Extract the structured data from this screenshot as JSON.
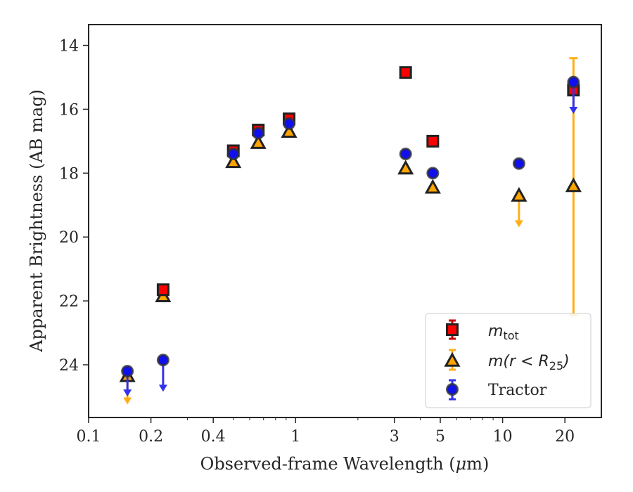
{
  "chart_data": {
    "type": "scatter",
    "xlabel_text": "Observed-frame Wavelength (",
    "xlabel_mu": "μ",
    "xlabel_unit": "m)",
    "ylabel": "Apparent Brightness (AB mag)",
    "xscale": "log",
    "xlim": [
      0.1,
      30
    ],
    "ylim": [
      25.65,
      13.35
    ],
    "y_inverted": true,
    "grid": false,
    "legend_position": "bottom-right",
    "x_tick_labels": [
      "0.1",
      "0.2",
      "0.4",
      "1",
      "3",
      "5",
      "10",
      "20"
    ],
    "x_tick_values": [
      0.1,
      0.2,
      0.4,
      1,
      3,
      5,
      10,
      20
    ],
    "y_tick_labels": [
      "14",
      "16",
      "18",
      "20",
      "22",
      "24"
    ],
    "y_tick_values": [
      14,
      16,
      18,
      20,
      22,
      24
    ],
    "colors": {
      "mtot": "#ff0000",
      "mr25": "#ffa500",
      "tractor": "#1010ee",
      "mr25_err": "#ffae1a",
      "tractor_err": "#3333ee",
      "edge": "#222222"
    },
    "series": [
      {
        "key": "mtot",
        "name_main": "m",
        "name_sub": "tot",
        "marker": "square",
        "points": [
          {
            "x": 0.229,
            "y": 21.65
          },
          {
            "x": 0.5,
            "y": 17.3
          },
          {
            "x": 0.66,
            "y": 16.65
          },
          {
            "x": 0.93,
            "y": 16.3
          },
          {
            "x": 3.4,
            "y": 14.85
          },
          {
            "x": 4.6,
            "y": 17.0
          },
          {
            "x": 22.0,
            "y": 15.4
          }
        ]
      },
      {
        "key": "mr25",
        "name_full": "m(r < R25)",
        "name_main": "m(r < R",
        "name_sub": "25",
        "name_close": ")",
        "marker": "triangle",
        "points": [
          {
            "x": 0.154,
            "y": 24.35,
            "upper_limit": true,
            "arrow_to": 25.2
          },
          {
            "x": 0.229,
            "y": 21.85
          },
          {
            "x": 0.5,
            "y": 17.65
          },
          {
            "x": 0.66,
            "y": 17.05
          },
          {
            "x": 0.93,
            "y": 16.7
          },
          {
            "x": 3.4,
            "y": 17.85
          },
          {
            "x": 4.6,
            "y": 18.45
          },
          {
            "x": 12.0,
            "y": 18.7,
            "upper_limit": true,
            "arrow_to": 19.65
          },
          {
            "x": 22.0,
            "y": 18.4,
            "err_high": 14.4,
            "err_low": 22.45
          }
        ]
      },
      {
        "key": "tractor",
        "name": "Tractor",
        "marker": "circle",
        "points": [
          {
            "x": 0.154,
            "y": 24.2,
            "upper_limit": true,
            "arrow_to": 24.95
          },
          {
            "x": 0.229,
            "y": 23.85,
            "upper_limit": true,
            "arrow_to": 24.8
          },
          {
            "x": 0.5,
            "y": 17.4
          },
          {
            "x": 0.66,
            "y": 16.75
          },
          {
            "x": 0.93,
            "y": 16.45
          },
          {
            "x": 3.4,
            "y": 17.4
          },
          {
            "x": 4.6,
            "y": 18.0
          },
          {
            "x": 12.0,
            "y": 17.7
          },
          {
            "x": 22.0,
            "y": 15.15,
            "upper_limit": true,
            "arrow_to": 16.1
          }
        ]
      }
    ]
  }
}
